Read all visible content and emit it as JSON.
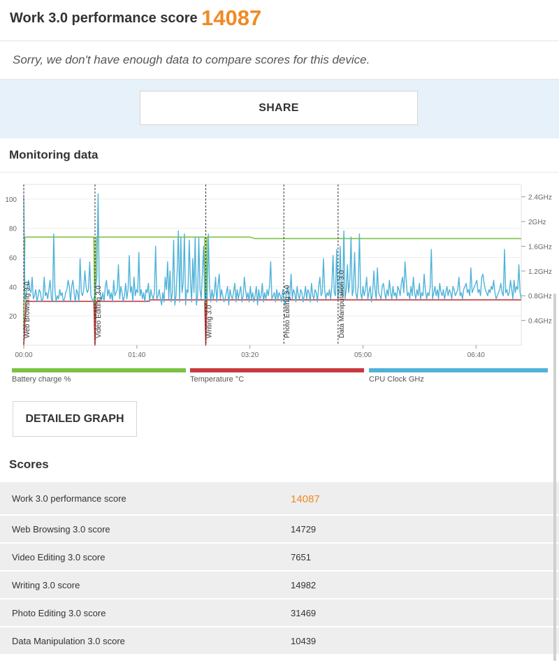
{
  "header": {
    "title": "Work 3.0 performance score",
    "score": "14087"
  },
  "notice": "Sorry, we don't have enough data to compare scores for this device.",
  "share_label": "SHARE",
  "monitoring_title": "Monitoring data",
  "chart_data": {
    "type": "line",
    "x_ticks": [
      "00:00",
      "01:40",
      "03:20",
      "05:00",
      "06:40"
    ],
    "y_left_ticks": [
      "20",
      "40",
      "60",
      "80",
      "100"
    ],
    "y_right_ticks": [
      "0.4GHz",
      "0.8GHz",
      "1.2GHz",
      "1.6GHz",
      "2GHz",
      "2.4GHz"
    ],
    "ylim_left": [
      0,
      110
    ],
    "ylim_right": [
      0,
      2.6
    ],
    "xlim_seconds": [
      0,
      440
    ],
    "sections": [
      {
        "label": "Web Browsing 3.0",
        "start": 0
      },
      {
        "label": "Video Editing 3.0",
        "start": 63
      },
      {
        "label": "Writing 3.0",
        "start": 161
      },
      {
        "label": "Photo Editing 3.0",
        "start": 230
      },
      {
        "label": "Data Manipulation 3.0",
        "start": 278
      }
    ],
    "series": [
      {
        "name": "Battery charge %",
        "color": "#7cc242",
        "axis": "left",
        "points": [
          [
            0,
            10
          ],
          [
            1,
            74
          ],
          [
            62,
            74
          ],
          [
            63,
            10
          ],
          [
            64,
            74
          ],
          [
            160,
            74
          ],
          [
            161,
            10
          ],
          [
            162,
            74
          ],
          [
            200,
            74
          ],
          [
            204,
            73
          ],
          [
            440,
            73
          ]
        ]
      },
      {
        "name": "Temperature °C",
        "color": "#c8383c",
        "axis": "left",
        "points": [
          [
            0,
            0
          ],
          [
            2,
            30
          ],
          [
            62,
            30
          ],
          [
            63,
            0
          ],
          [
            64,
            30
          ],
          [
            110,
            30
          ],
          [
            112,
            31
          ],
          [
            160,
            31
          ],
          [
            161,
            0
          ],
          [
            162,
            31
          ],
          [
            440,
            31
          ]
        ]
      },
      {
        "name": "CPU Clock GHz",
        "color": "#4fb3d9",
        "axis": "right",
        "values": [
          2.4,
          0.75,
          0.8,
          0.95,
          1.05,
          0.9,
          0.85,
          1.1,
          0.75,
          0.8,
          0.9,
          0.7,
          0.8,
          0.9,
          0.85,
          0.7,
          0.75,
          1.1,
          0.8,
          0.85,
          0.75,
          0.9,
          1.05,
          0.75,
          0.7,
          1.8,
          0.9,
          0.7,
          0.8,
          0.75,
          0.9,
          0.8,
          0.85,
          0.7,
          0.75,
          0.85,
          0.9,
          1.05,
          0.95,
          0.7,
          0.95,
          1.05,
          0.85,
          0.7,
          0.9,
          0.85,
          0.7,
          1.4,
          0.85,
          0.8,
          0.9,
          1.2,
          0.95,
          0.85,
          0.9,
          1.35,
          0.8,
          0.75,
          0.7,
          0.8,
          0.95,
          1.1,
          2.45,
          0.9,
          0.8,
          0.75,
          0.85,
          0.7,
          0.95,
          1.05,
          0.8,
          0.9,
          0.75,
          0.85,
          0.7,
          1.05,
          0.8,
          0.85,
          0.9,
          1.3,
          0.75,
          0.95,
          0.85,
          0.7,
          0.8,
          1.0,
          0.75,
          0.9,
          1.45,
          0.85,
          0.95,
          0.7,
          1.1,
          0.8,
          0.9,
          0.85,
          1.5,
          0.8,
          0.9,
          0.75,
          0.85,
          0.7,
          0.9,
          0.85,
          1.0,
          0.7,
          0.9,
          0.8,
          0.75,
          0.85,
          1.6,
          0.75,
          0.8,
          0.9,
          0.75,
          0.65,
          0.85,
          0.7,
          1.1,
          0.9,
          1.35,
          0.75,
          1.2,
          0.7,
          0.85,
          1.7,
          0.65,
          0.8,
          1.2,
          1.85,
          0.7,
          1.75,
          0.85,
          1.0,
          1.8,
          0.65,
          0.9,
          0.85,
          1.7,
          1.05,
          0.7,
          1.4,
          0.85,
          1.75,
          0.65,
          0.8,
          1.75,
          0.9,
          0.75,
          1.15,
          1.6,
          0.7,
          0.85,
          0.75,
          1.8,
          0.95,
          0.7,
          0.9,
          0.75,
          0.85,
          1.1,
          0.7,
          0.95,
          1.15,
          0.75,
          0.9,
          0.8,
          0.7,
          0.75,
          0.85,
          0.95,
          0.65,
          0.9,
          0.8,
          0.75,
          0.85,
          1.0,
          0.7,
          0.9,
          0.75,
          0.85,
          0.95,
          0.7,
          0.8,
          1.1,
          0.9,
          0.75,
          0.85,
          0.7,
          0.95,
          0.75,
          0.85,
          0.7,
          0.8,
          0.95,
          0.65,
          0.9,
          0.75,
          0.8,
          1.0,
          0.7,
          0.85,
          0.75,
          0.9,
          0.8,
          0.95,
          1.35,
          0.75,
          0.8,
          0.85,
          0.7,
          0.9,
          0.75,
          0.85,
          0.8,
          0.7,
          0.9,
          0.75,
          0.65,
          0.85,
          0.95,
          0.7,
          0.8,
          1.15,
          0.75,
          0.9,
          0.85,
          0.7,
          0.95,
          0.8,
          0.75,
          0.9,
          0.85,
          0.7,
          0.8,
          0.95,
          0.75,
          0.9,
          0.85,
          0.7,
          1.0,
          0.8,
          0.75,
          0.9,
          0.85,
          0.7,
          0.95,
          1.1,
          0.8,
          0.85,
          1.4,
          0.9,
          0.75,
          0.85,
          0.8,
          0.9,
          0.75,
          0.95,
          1.45,
          0.85,
          0.8,
          1.55,
          0.75,
          0.9,
          1.6,
          0.85,
          0.8,
          1.85,
          0.75,
          0.9,
          1.3,
          0.85,
          1.05,
          1.75,
          0.8,
          0.9,
          1.5,
          0.85,
          0.75,
          0.95,
          1.8,
          0.85,
          0.75,
          0.95,
          0.8,
          0.9,
          1.1,
          0.75,
          0.85,
          0.95,
          0.7,
          0.85,
          1.2,
          0.9,
          0.75,
          1.25,
          0.85,
          0.8,
          0.75,
          0.95,
          1.0,
          0.85,
          0.75,
          0.9,
          0.8,
          1.05,
          0.85,
          0.75,
          0.95,
          0.8,
          0.85,
          0.75,
          0.95,
          0.9,
          0.8,
          1.0,
          1.1,
          0.85,
          1.35,
          1.05,
          0.8,
          0.85,
          0.75,
          0.95,
          0.8,
          1.1,
          0.85,
          0.75,
          0.9,
          0.8,
          1.0,
          0.75,
          0.85,
          0.8,
          1.15,
          0.9,
          0.75,
          0.85,
          0.8,
          0.95,
          1.55,
          0.75,
          0.85,
          0.95,
          0.8,
          0.9,
          0.75,
          1.0,
          0.85,
          0.8,
          0.9,
          0.75,
          0.85,
          0.95,
          0.8,
          0.9,
          0.85,
          0.75,
          0.95,
          0.9,
          0.8,
          0.85,
          0.9,
          1.1,
          0.8,
          0.85,
          0.75,
          0.9,
          0.95,
          1.0,
          0.85,
          0.9,
          0.8,
          1.25,
          0.85,
          0.9,
          0.95,
          1.0,
          1.05,
          0.85,
          0.9,
          0.8,
          1.1,
          1.15,
          1.0,
          0.9,
          0.85,
          0.8,
          0.9,
          0.85,
          0.95,
          0.9,
          1.05,
          0.85,
          0.75,
          0.8,
          0.85,
          0.9,
          1.0,
          0.85,
          0.8,
          1.55,
          0.85,
          0.9,
          0.8,
          0.85,
          1.05,
          0.9,
          0.75,
          1.05,
          0.85,
          0.95,
          0.9,
          1.3,
          0.85,
          0.75
        ]
      }
    ]
  },
  "legend": [
    {
      "label": "Battery charge %",
      "color": "#7cc242"
    },
    {
      "label": "Temperature °C",
      "color": "#c8383c"
    },
    {
      "label": "CPU Clock GHz",
      "color": "#4fb3d9"
    }
  ],
  "detailed_graph_label": "DETAILED GRAPH",
  "scores_title": "Scores",
  "scores": [
    {
      "label": "Work 3.0 performance score",
      "value": "14087"
    },
    {
      "label": "Web Browsing 3.0 score",
      "value": "14729"
    },
    {
      "label": "Video Editing 3.0 score",
      "value": "7651"
    },
    {
      "label": "Writing 3.0 score",
      "value": "14982"
    },
    {
      "label": "Photo Editing 3.0 score",
      "value": "31469"
    },
    {
      "label": "Data Manipulation 3.0 score",
      "value": "10439"
    }
  ]
}
